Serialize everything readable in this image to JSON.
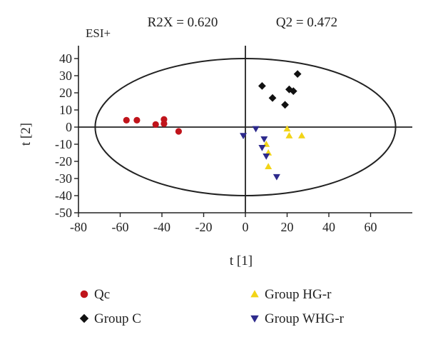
{
  "chart_data": {
    "type": "scatter",
    "stats": [
      "R2X = 0.620",
      "Q2 = 0.472"
    ],
    "mode_label": "ESI+",
    "xlabel": "t [1]",
    "ylabel": "t [2]",
    "xlim": [
      -80,
      80
    ],
    "ylim": [
      -50,
      45
    ],
    "xticks": [
      -80,
      -60,
      -40,
      -20,
      0,
      20,
      40,
      60
    ],
    "yticks": [
      -50,
      -40,
      -30,
      -20,
      -10,
      0,
      10,
      20,
      30,
      40
    ],
    "grid": false,
    "legend_position": "bottom",
    "reference_lines": {
      "x": 0,
      "y": 0
    },
    "confidence_ellipse": {
      "center": [
        0,
        0
      ],
      "semi_axis_x": 72,
      "semi_axis_y": 40
    },
    "series": [
      {
        "name": "Qc",
        "marker": "circle",
        "color": "#c0141b",
        "points": [
          [
            -57,
            4
          ],
          [
            -52,
            4
          ],
          [
            -43,
            1.5
          ],
          [
            -39,
            4.5
          ],
          [
            -39,
            2
          ],
          [
            -32,
            -2.5
          ]
        ]
      },
      {
        "name": "Group C",
        "marker": "diamond",
        "color": "#111111",
        "points": [
          [
            8,
            24
          ],
          [
            13,
            17
          ],
          [
            19,
            13
          ],
          [
            21,
            22
          ],
          [
            23,
            21
          ],
          [
            25,
            31
          ]
        ]
      },
      {
        "name": "Group HG-r",
        "marker": "triangle-up",
        "color": "#f2d417",
        "points": [
          [
            20,
            -1
          ],
          [
            21,
            -5
          ],
          [
            27,
            -5
          ],
          [
            10,
            -10
          ],
          [
            11,
            -15
          ],
          [
            11,
            -23
          ]
        ]
      },
      {
        "name": "Group WHG-r",
        "marker": "triangle-down",
        "color": "#2d2a8c",
        "points": [
          [
            -1,
            -5
          ],
          [
            5,
            -1
          ],
          [
            9,
            -7
          ],
          [
            8,
            -12
          ],
          [
            10,
            -17
          ],
          [
            15,
            -29
          ]
        ]
      }
    ]
  }
}
